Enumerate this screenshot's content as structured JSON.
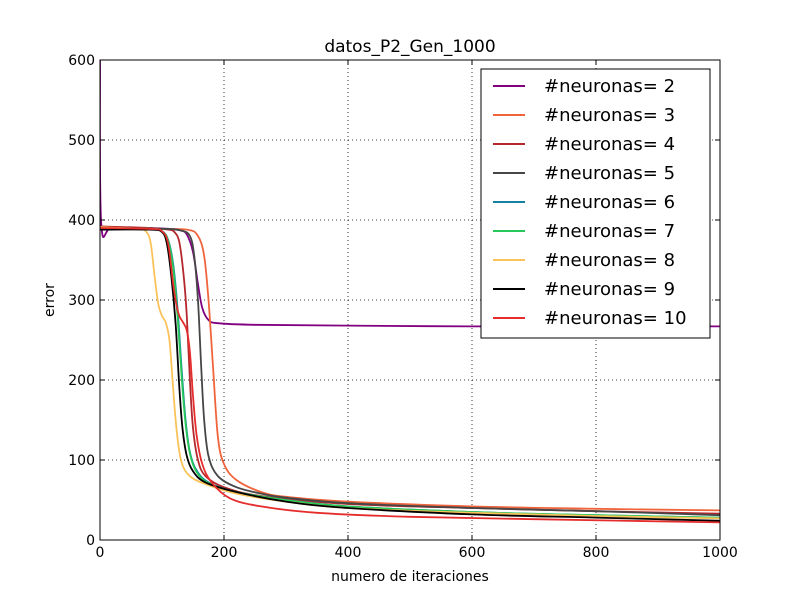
{
  "chart_data": {
    "type": "line",
    "title": "datos_P2_Gen_1000",
    "xlabel": "numero de iteraciones",
    "ylabel": "error",
    "xlim": [
      0,
      1000
    ],
    "ylim": [
      0,
      600
    ],
    "xticks": [
      "0",
      "200",
      "400",
      "600",
      "800",
      "1000"
    ],
    "yticks": [
      "0",
      "100",
      "200",
      "300",
      "400",
      "500",
      "600"
    ],
    "grid": true,
    "legend_position": "top-right",
    "series": [
      {
        "name": "#neuronas= 2",
        "color": "#800080",
        "points": [
          [
            0,
            600
          ],
          [
            2,
            395
          ],
          [
            20,
            391
          ],
          [
            80,
            390
          ],
          [
            110,
            389
          ],
          [
            130,
            387
          ],
          [
            140,
            382
          ],
          [
            150,
            360
          ],
          [
            158,
            320
          ],
          [
            165,
            290
          ],
          [
            175,
            275
          ],
          [
            190,
            271
          ],
          [
            250,
            269
          ],
          [
            400,
            268
          ],
          [
            600,
            267
          ],
          [
            800,
            267
          ],
          [
            1000,
            267
          ]
        ]
      },
      {
        "name": "#neuronas= 3",
        "color": "#f0643c",
        "points": [
          [
            0,
            390
          ],
          [
            80,
            389
          ],
          [
            140,
            388
          ],
          [
            158,
            380
          ],
          [
            168,
            355
          ],
          [
            175,
            300
          ],
          [
            182,
            220
          ],
          [
            190,
            130
          ],
          [
            200,
            95
          ],
          [
            220,
            75
          ],
          [
            260,
            60
          ],
          [
            300,
            54
          ],
          [
            400,
            48
          ],
          [
            600,
            42
          ],
          [
            800,
            39
          ],
          [
            1000,
            37
          ]
        ]
      },
      {
        "name": "#neuronas= 4",
        "color": "#b4282d",
        "points": [
          [
            0,
            392
          ],
          [
            80,
            390
          ],
          [
            110,
            388
          ],
          [
            120,
            385
          ],
          [
            128,
            372
          ],
          [
            135,
            330
          ],
          [
            140,
            280
          ],
          [
            145,
            200
          ],
          [
            150,
            140
          ],
          [
            158,
            100
          ],
          [
            170,
            80
          ],
          [
            200,
            66
          ],
          [
            260,
            55
          ],
          [
            400,
            45
          ],
          [
            600,
            40
          ],
          [
            800,
            36
          ],
          [
            1000,
            33
          ]
        ]
      },
      {
        "name": "#neuronas= 5",
        "color": "#464646",
        "points": [
          [
            0,
            390
          ],
          [
            100,
            389
          ],
          [
            130,
            387
          ],
          [
            145,
            380
          ],
          [
            152,
            355
          ],
          [
            158,
            300
          ],
          [
            163,
            220
          ],
          [
            168,
            150
          ],
          [
            175,
            105
          ],
          [
            190,
            80
          ],
          [
            220,
            66
          ],
          [
            260,
            58
          ],
          [
            300,
            53
          ],
          [
            400,
            46
          ],
          [
            600,
            40
          ],
          [
            800,
            36
          ],
          [
            1000,
            31
          ]
        ]
      },
      {
        "name": "#neuronas= 6",
        "color": "#1482a0",
        "points": [
          [
            0,
            390
          ],
          [
            80,
            389
          ],
          [
            100,
            386
          ],
          [
            110,
            375
          ],
          [
            118,
            345
          ],
          [
            125,
            290
          ],
          [
            132,
            210
          ],
          [
            138,
            150
          ],
          [
            145,
            110
          ],
          [
            155,
            88
          ],
          [
            175,
            72
          ],
          [
            220,
            60
          ],
          [
            300,
            50
          ],
          [
            400,
            42
          ],
          [
            600,
            35
          ],
          [
            800,
            31
          ],
          [
            1000,
            28
          ]
        ]
      },
      {
        "name": "#neuronas= 7",
        "color": "#28c85a",
        "points": [
          [
            0,
            390
          ],
          [
            80,
            389
          ],
          [
            100,
            386
          ],
          [
            110,
            374
          ],
          [
            118,
            340
          ],
          [
            125,
            280
          ],
          [
            132,
            200
          ],
          [
            138,
            145
          ],
          [
            145,
            108
          ],
          [
            155,
            86
          ],
          [
            175,
            71
          ],
          [
            220,
            60
          ],
          [
            300,
            50
          ],
          [
            400,
            42
          ],
          [
            600,
            35
          ],
          [
            800,
            31
          ],
          [
            1000,
            28
          ]
        ]
      },
      {
        "name": "#neuronas= 8",
        "color": "#fac35a",
        "points": [
          [
            0,
            391
          ],
          [
            60,
            389
          ],
          [
            75,
            385
          ],
          [
            82,
            370
          ],
          [
            88,
            330
          ],
          [
            94,
            295
          ],
          [
            100,
            280
          ],
          [
            106,
            272
          ],
          [
            112,
            250
          ],
          [
            117,
            200
          ],
          [
            122,
            150
          ],
          [
            128,
            110
          ],
          [
            135,
            90
          ],
          [
            148,
            78
          ],
          [
            170,
            70
          ],
          [
            220,
            58
          ],
          [
            300,
            48
          ],
          [
            400,
            40
          ],
          [
            600,
            34
          ],
          [
            800,
            30
          ],
          [
            1000,
            27
          ]
        ]
      },
      {
        "name": "#neuronas= 9",
        "color": "#000000",
        "points": [
          [
            0,
            388
          ],
          [
            80,
            388
          ],
          [
            100,
            385
          ],
          [
            108,
            370
          ],
          [
            115,
            330
          ],
          [
            122,
            270
          ],
          [
            128,
            190
          ],
          [
            133,
            140
          ],
          [
            140,
            105
          ],
          [
            150,
            86
          ],
          [
            170,
            72
          ],
          [
            220,
            60
          ],
          [
            300,
            48
          ],
          [
            400,
            40
          ],
          [
            600,
            32
          ],
          [
            800,
            28
          ],
          [
            1000,
            24
          ]
        ]
      },
      {
        "name": "#neuronas= 10",
        "color": "#e62d2d",
        "points": [
          [
            0,
            390
          ],
          [
            80,
            389
          ],
          [
            100,
            386
          ],
          [
            110,
            370
          ],
          [
            118,
            320
          ],
          [
            123,
            295
          ],
          [
            128,
            280
          ],
          [
            134,
            272
          ],
          [
            140,
            262
          ],
          [
            145,
            235
          ],
          [
            150,
            180
          ],
          [
            156,
            130
          ],
          [
            165,
            95
          ],
          [
            180,
            72
          ],
          [
            210,
            52
          ],
          [
            260,
            42
          ],
          [
            350,
            34
          ],
          [
            500,
            29
          ],
          [
            700,
            26
          ],
          [
            1000,
            22
          ]
        ]
      }
    ]
  }
}
